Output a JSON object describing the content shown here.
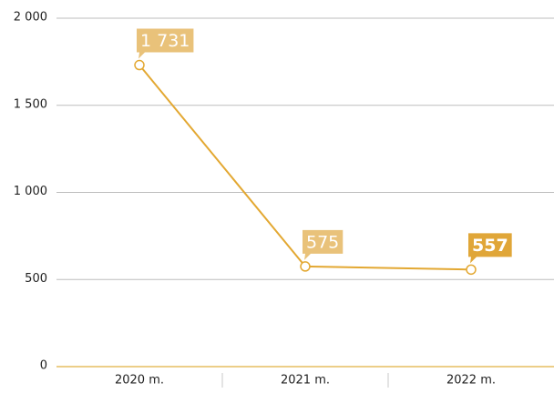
{
  "chart_data": {
    "type": "line",
    "categories": [
      "2020 m.",
      "2021 m.",
      "2022 m."
    ],
    "series": [
      {
        "color": "#e3a832",
        "values": [
          1731,
          575,
          557
        ],
        "value_labels": [
          "1 731",
          "575",
          "557"
        ]
      }
    ],
    "ylim": [
      0,
      2000
    ],
    "yticks": [
      0,
      500,
      {
        "value": 1000,
        "label": "1 000"
      },
      {
        "value": 1500,
        "label": "1 500"
      },
      {
        "value": 2000,
        "label": "2 000"
      }
    ],
    "grid": true
  }
}
